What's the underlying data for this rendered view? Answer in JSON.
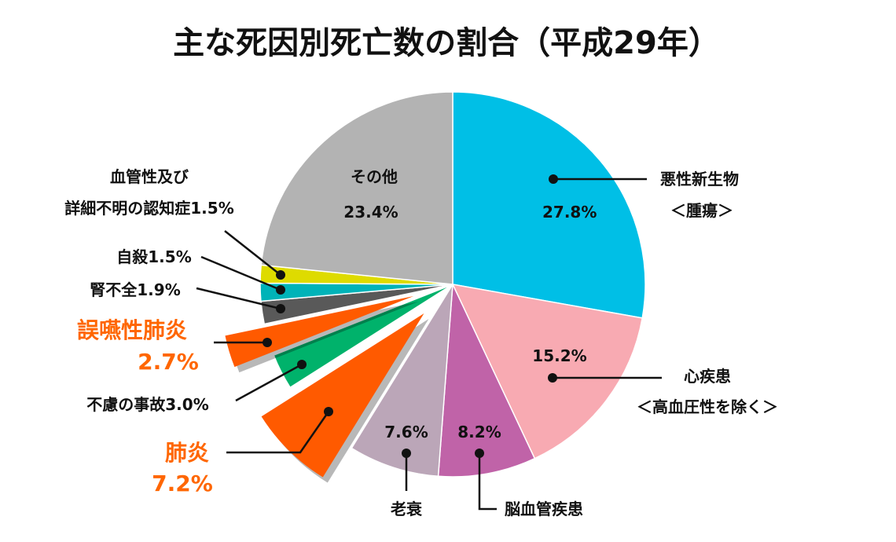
{
  "chart_data": {
    "type": "pie",
    "title": "主な死因別死亡数の割合（平成29年）",
    "slices": [
      {
        "key": "cancer",
        "label": "悪性新生物",
        "label2": "＜腫瘍＞",
        "value": 27.8,
        "pct_text": "27.8%",
        "color": "#00BFE6"
      },
      {
        "key": "heart",
        "label": "心疾患",
        "label2": "＜高血圧性を除く＞",
        "value": 15.2,
        "pct_text": "15.2%",
        "color": "#F8AAB2"
      },
      {
        "key": "cerebro",
        "label": "脳血管疾患",
        "value": 8.2,
        "pct_text": "8.2%",
        "color": "#C063A8"
      },
      {
        "key": "senility",
        "label": "老衰",
        "value": 7.6,
        "pct_text": "7.6%",
        "color": "#BBA6B8"
      },
      {
        "key": "pneumonia",
        "label": "肺炎",
        "value": 7.2,
        "pct_text": "7.2%",
        "color": "#FF5A00",
        "highlight": true
      },
      {
        "key": "accident",
        "label": "不慮の事故3.0%",
        "value": 3.0,
        "color": "#00B26B"
      },
      {
        "key": "aspiration",
        "label": "誤嚥性肺炎",
        "value": 2.7,
        "pct_text": "2.7%",
        "color": "#FF5A00",
        "highlight": true
      },
      {
        "key": "kidney",
        "label": "腎不全1.9%",
        "value": 1.9,
        "color": "#595959"
      },
      {
        "key": "suicide",
        "label": "自殺1.5%",
        "value": 1.5,
        "color": "#00B3B8"
      },
      {
        "key": "dementia",
        "label": "血管性及び",
        "label2": "詳細不明の認知症1.5%",
        "value": 1.5,
        "color": "#DEDB00"
      },
      {
        "key": "other",
        "label": "その他",
        "value": 23.4,
        "pct_text": "23.4%",
        "color": "#B3B3B3"
      }
    ],
    "highlight_color": "#FF6600"
  }
}
